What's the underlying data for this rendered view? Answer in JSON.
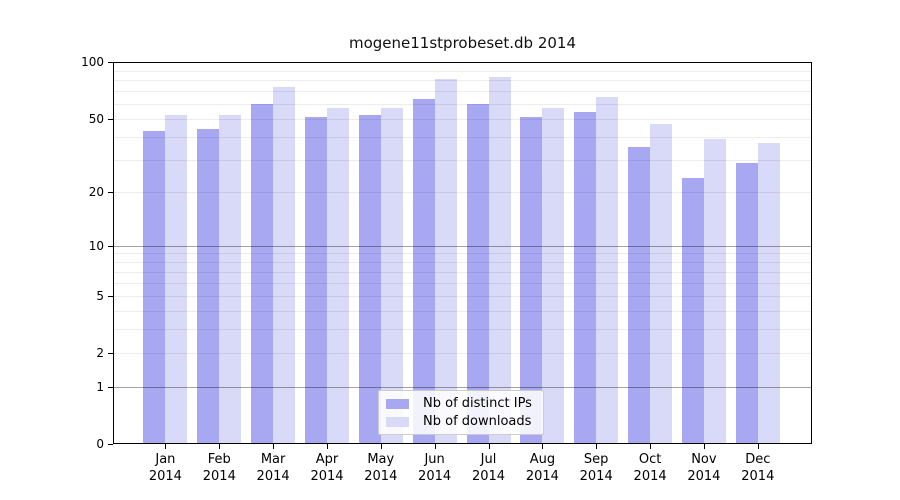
{
  "title": "mogene11stprobeset.db 2014",
  "chart_data": {
    "type": "bar",
    "title": "mogene11stprobeset.db 2014",
    "categories": [
      "Jan 2014",
      "Feb 2014",
      "Mar 2014",
      "Apr 2014",
      "May 2014",
      "Jun 2014",
      "Jul 2014",
      "Aug 2014",
      "Sep 2014",
      "Oct 2014",
      "Nov 2014",
      "Dec 2014"
    ],
    "months": [
      "Jan",
      "Feb",
      "Mar",
      "Apr",
      "May",
      "Jun",
      "Jul",
      "Aug",
      "Sep",
      "Oct",
      "Nov",
      "Dec"
    ],
    "year": "2014",
    "series": [
      {
        "name": "Nb of distinct IPs",
        "color": "#a8a8f2",
        "values": [
          43,
          44,
          60,
          51,
          52,
          64,
          60,
          51,
          54,
          35,
          24,
          29
        ]
      },
      {
        "name": "Nb of downloads",
        "color": "#d9d9f8",
        "values": [
          52,
          52,
          74,
          57,
          57,
          81,
          83,
          57,
          65,
          47,
          39,
          37
        ]
      }
    ],
    "y_axis": {
      "scale": "log1p",
      "ylim": [
        0,
        100
      ],
      "ticks": [
        0,
        1,
        2,
        5,
        10,
        20,
        50,
        100
      ],
      "decade_gridlines": [
        1,
        10,
        100
      ],
      "minor_gridlines": [
        2,
        3,
        4,
        5,
        6,
        7,
        8,
        9,
        20,
        30,
        40,
        50,
        60,
        70,
        80,
        90
      ]
    },
    "grid": true,
    "legend_position": "bottom-center"
  },
  "legend": {
    "items": [
      {
        "label": "Nb of distinct IPs",
        "color": "#a8a8f2"
      },
      {
        "label": "Nb of downloads",
        "color": "#d9d9f8"
      }
    ]
  },
  "colors": {
    "background": "#ffffff",
    "spine": "#000000",
    "decade_grid": "#a3a3a3",
    "minor_grid": "#ededed",
    "text": "#000000",
    "legend_border": "#cccccc"
  }
}
